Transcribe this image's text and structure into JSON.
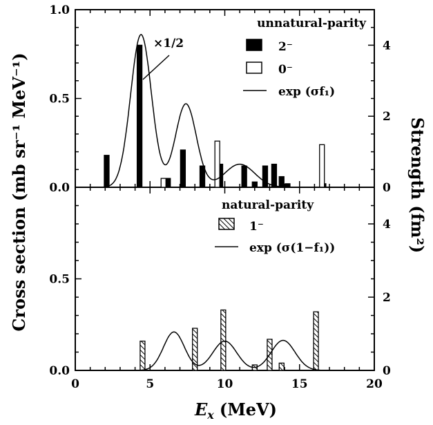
{
  "chart_data": [
    {
      "type": "bar",
      "panel": "top",
      "xlim": [
        0,
        20
      ],
      "ylim_left": [
        0,
        1.0
      ],
      "ylim_right": [
        0,
        5
      ],
      "left_ticks": [
        "0.0",
        "0.5",
        "1.0"
      ],
      "right_ticks": [
        "0",
        "2",
        "4"
      ],
      "legend_title": "unnatural-parity",
      "annotation": "×1/2",
      "series": [
        {
          "name": "2⁻",
          "style": "solid-black",
          "points": [
            [
              2.1,
              0.18
            ],
            [
              4.3,
              0.8
            ],
            [
              6.2,
              0.05
            ],
            [
              7.2,
              0.21
            ],
            [
              8.5,
              0.12
            ],
            [
              9.7,
              0.13
            ],
            [
              11.3,
              0.12
            ],
            [
              12.0,
              0.03
            ],
            [
              12.7,
              0.12
            ],
            [
              13.3,
              0.13
            ],
            [
              13.8,
              0.06
            ],
            [
              14.2,
              0.02
            ],
            [
              16.6,
              0.02
            ]
          ]
        },
        {
          "name": "0⁻",
          "style": "open",
          "points": [
            [
              5.9,
              0.05
            ],
            [
              9.5,
              0.26
            ],
            [
              16.5,
              0.24
            ]
          ]
        },
        {
          "name": "exp (σf₁)",
          "style": "line",
          "axis": "right",
          "gaussians": [
            [
              4.4,
              0.7,
              4.3
            ],
            [
              7.4,
              0.7,
              2.35
            ],
            [
              11.0,
              1.0,
              0.65
            ]
          ]
        }
      ]
    },
    {
      "type": "bar",
      "panel": "bottom",
      "xlim": [
        0,
        20
      ],
      "ylim_left": [
        0,
        1.0
      ],
      "ylim_right": [
        0,
        5
      ],
      "left_ticks": [
        "0.0",
        "0.5"
      ],
      "right_ticks": [
        "0",
        "2",
        "4"
      ],
      "legend_title": "natural-parity",
      "series": [
        {
          "name": "1⁻",
          "style": "hatched",
          "points": [
            [
              4.5,
              0.16
            ],
            [
              8.0,
              0.23
            ],
            [
              9.9,
              0.33
            ],
            [
              12.0,
              0.03
            ],
            [
              13.0,
              0.17
            ],
            [
              13.8,
              0.04
            ],
            [
              16.1,
              0.32
            ]
          ]
        },
        {
          "name": "exp (σ(1−f₁))",
          "style": "line",
          "axis": "right",
          "gaussians": [
            [
              6.6,
              0.7,
              1.05
            ],
            [
              10.0,
              0.8,
              0.8
            ],
            [
              13.9,
              0.8,
              0.82
            ]
          ]
        }
      ]
    }
  ],
  "x_ticks": [
    "0",
    "5",
    "10",
    "15",
    "20"
  ],
  "x_axis_label_var": "E",
  "x_axis_label_sub": "x",
  "x_axis_label_unit": "(MeV)",
  "y_left_label": "Cross section (mb sr⁻¹ MeV⁻¹)",
  "y_right_label": "Strength (fm²)"
}
